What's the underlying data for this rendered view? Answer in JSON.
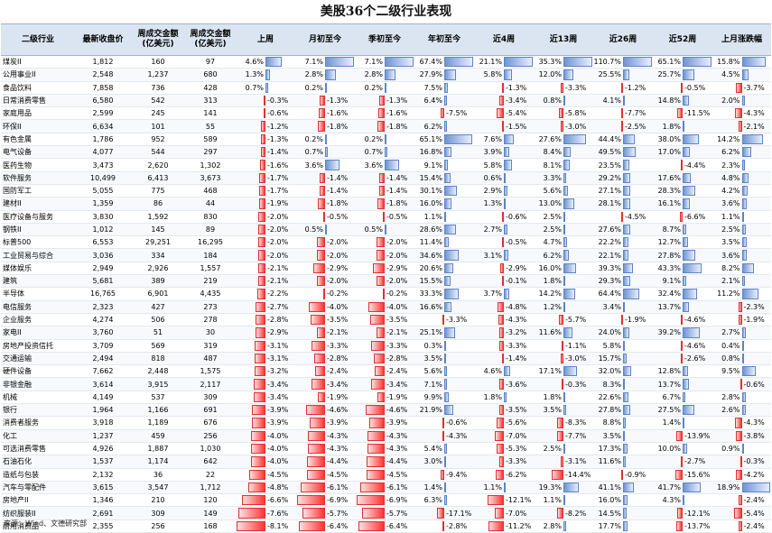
{
  "title": "美股36个二级行业表现",
  "source": "来源：Wind、文德研究部",
  "headers": [
    "二级行业",
    "最新收盘价",
    "周成交金额\n(亿美元)",
    "周成交金额\n(亿美元)",
    "上周",
    "月初至今",
    "季初至今",
    "年初至今",
    "近4周",
    "近13周",
    "近26周",
    "近52周",
    "上月涨跌幅"
  ],
  "colors": {
    "header_bg": "#dbe5f1",
    "positive_bar": "#6f95d2",
    "negative_bar": "#ff3333"
  },
  "rows": [
    {
      "name": "煤炭II",
      "price": "1,812",
      "amt1": "160",
      "amt2": "97",
      "p": [
        "4.6%",
        "7.1%",
        "7.1%",
        "67.4%",
        "21.1%",
        "35.3%",
        "110.7%",
        "65.1%",
        "15.8%"
      ]
    },
    {
      "name": "公用事业II",
      "price": "2,548",
      "amt1": "1,237",
      "amt2": "680",
      "p": [
        "1.3%",
        "2.8%",
        "2.8%",
        "27.9%",
        "5.8%",
        "12.0%",
        "25.5%",
        "25.7%",
        "4.5%"
      ]
    },
    {
      "name": "食品饮料",
      "price": "7,858",
      "amt1": "736",
      "amt2": "428",
      "p": [
        "0.7%",
        "0.2%",
        "0.2%",
        "7.5%",
        "-1.3%",
        "-3.3%",
        "-1.2%",
        "-0.5%",
        "-3.7%"
      ]
    },
    {
      "name": "日常消费零售",
      "price": "6,580",
      "amt1": "542",
      "amt2": "313",
      "p": [
        "-0.3%",
        "-1.3%",
        "-1.3%",
        "6.4%",
        "-3.4%",
        "0.8%",
        "4.1%",
        "14.8%",
        "2.0%"
      ]
    },
    {
      "name": "家庭用品",
      "price": "2,599",
      "amt1": "245",
      "amt2": "141",
      "p": [
        "-0.6%",
        "-1.6%",
        "-1.6%",
        "-7.5%",
        "-5.4%",
        "-5.8%",
        "-7.7%",
        "-11.5%",
        "-4.3%"
      ]
    },
    {
      "name": "环保II",
      "price": "6,634",
      "amt1": "101",
      "amt2": "55",
      "p": [
        "-1.2%",
        "-1.8%",
        "-1.8%",
        "6.2%",
        "-1.5%",
        "-3.0%",
        "-2.5%",
        "1.8%",
        "-2.1%"
      ]
    },
    {
      "name": "有色金属",
      "price": "1,786",
      "amt1": "952",
      "amt2": "589",
      "p": [
        "-1.3%",
        "0.2%",
        "0.2%",
        "65.1%",
        "7.6%",
        "27.6%",
        "44.4%",
        "38.0%",
        "14.2%"
      ]
    },
    {
      "name": "电气设备",
      "price": "4,077",
      "amt1": "544",
      "amt2": "297",
      "p": [
        "-1.4%",
        "0.7%",
        "0.7%",
        "16.8%",
        "3.9%",
        "8.4%",
        "49.5%",
        "17.0%",
        "6.2%"
      ]
    },
    {
      "name": "医药生物",
      "price": "3,473",
      "amt1": "2,620",
      "amt2": "1,302",
      "p": [
        "-1.6%",
        "3.6%",
        "3.6%",
        "9.1%",
        "5.8%",
        "8.1%",
        "23.5%",
        "-4.4%",
        "2.3%"
      ]
    },
    {
      "name": "软件服务",
      "price": "10,499",
      "amt1": "6,413",
      "amt2": "3,673",
      "p": [
        "-1.7%",
        "-1.4%",
        "-1.4%",
        "15.4%",
        "0.6%",
        "3.3%",
        "29.2%",
        "17.6%",
        "4.8%"
      ]
    },
    {
      "name": "国防军工",
      "price": "5,055",
      "amt1": "775",
      "amt2": "468",
      "p": [
        "-1.7%",
        "-1.4%",
        "-1.4%",
        "30.1%",
        "2.9%",
        "5.6%",
        "27.1%",
        "28.3%",
        "4.2%"
      ]
    },
    {
      "name": "建材II",
      "price": "1,359",
      "amt1": "86",
      "amt2": "44",
      "p": [
        "-1.9%",
        "-1.8%",
        "-1.8%",
        "16.0%",
        "1.3%",
        "13.0%",
        "28.1%",
        "16.1%",
        "3.6%"
      ]
    },
    {
      "name": "医疗设备与服务",
      "price": "3,830",
      "amt1": "1,592",
      "amt2": "830",
      "p": [
        "-2.0%",
        "-0.5%",
        "-0.5%",
        "1.1%",
        "-0.6%",
        "2.5%",
        "-4.5%",
        "-6.6%",
        "1.1%"
      ]
    },
    {
      "name": "钢铁II",
      "price": "1,012",
      "amt1": "145",
      "amt2": "89",
      "p": [
        "-2.0%",
        "0.5%",
        "0.5%",
        "28.6%",
        "2.7%",
        "2.5%",
        "27.6%",
        "8.7%",
        "2.5%"
      ]
    },
    {
      "name": "标普500",
      "price": "6,553",
      "amt1": "29,251",
      "amt2": "16,295",
      "p": [
        "-2.0%",
        "-2.0%",
        "-2.0%",
        "11.4%",
        "-0.5%",
        "4.7%",
        "22.2%",
        "12.7%",
        "3.5%"
      ]
    },
    {
      "name": "工业贸易与综合",
      "price": "3,036",
      "amt1": "334",
      "amt2": "184",
      "p": [
        "-2.0%",
        "-2.0%",
        "-2.0%",
        "34.6%",
        "3.1%",
        "6.2%",
        "22.1%",
        "27.8%",
        "3.6%"
      ]
    },
    {
      "name": "媒体娱乐",
      "price": "2,949",
      "amt1": "2,926",
      "amt2": "1,557",
      "p": [
        "-2.1%",
        "-2.9%",
        "-2.9%",
        "20.6%",
        "-2.9%",
        "16.0%",
        "39.3%",
        "43.3%",
        "8.2%"
      ]
    },
    {
      "name": "建筑",
      "price": "5,681",
      "amt1": "389",
      "amt2": "219",
      "p": [
        "-2.1%",
        "-2.0%",
        "-2.0%",
        "15.5%",
        "-0.1%",
        "1.8%",
        "29.3%",
        "9.1%",
        "2.1%"
      ]
    },
    {
      "name": "半导体",
      "price": "16,765",
      "amt1": "6,901",
      "amt2": "4,435",
      "p": [
        "-2.2%",
        "-0.2%",
        "-0.2%",
        "33.3%",
        "3.7%",
        "14.2%",
        "64.4%",
        "32.4%",
        "11.2%"
      ]
    },
    {
      "name": "电信服务",
      "price": "2,323",
      "amt1": "427",
      "amt2": "273",
      "p": [
        "-2.7%",
        "-4.0%",
        "-4.0%",
        "16.6%",
        "-4.8%",
        "1.2%",
        "3.4%",
        "13.7%",
        "-2.3%"
      ]
    },
    {
      "name": "企业服务",
      "price": "4,274",
      "amt1": "506",
      "amt2": "278",
      "p": [
        "-2.8%",
        "-3.5%",
        "-3.5%",
        "-3.3%",
        "-4.3%",
        "-5.7%",
        "-1.9%",
        "-4.6%",
        "-1.9%"
      ]
    },
    {
      "name": "家电II",
      "price": "3,760",
      "amt1": "51",
      "amt2": "30",
      "p": [
        "-2.9%",
        "-2.1%",
        "-2.1%",
        "25.1%",
        "-3.2%",
        "11.6%",
        "24.0%",
        "39.2%",
        "2.7%"
      ]
    },
    {
      "name": "房地产投资信托",
      "price": "3,709",
      "amt1": "569",
      "amt2": "319",
      "p": [
        "-3.1%",
        "-3.3%",
        "-3.3%",
        "0.3%",
        "-3.3%",
        "-1.1%",
        "5.8%",
        "-4.6%",
        "0.4%"
      ]
    },
    {
      "name": "交通运输",
      "price": "2,494",
      "amt1": "818",
      "amt2": "487",
      "p": [
        "-3.1%",
        "-2.8%",
        "-2.8%",
        "3.5%",
        "-1.4%",
        "-3.0%",
        "15.7%",
        "-2.6%",
        "0.8%"
      ]
    },
    {
      "name": "硬件设备",
      "price": "7,662",
      "amt1": "2,448",
      "amt2": "1,575",
      "p": [
        "-3.2%",
        "-2.4%",
        "-2.4%",
        "5.6%",
        "4.6%",
        "17.1%",
        "32.0%",
        "12.8%",
        "9.5%"
      ]
    },
    {
      "name": "非银金融",
      "price": "3,614",
      "amt1": "3,915",
      "amt2": "2,117",
      "p": [
        "-3.4%",
        "-3.4%",
        "-3.4%",
        "7.1%",
        "-3.6%",
        "-0.3%",
        "8.3%",
        "13.7%",
        "-0.6%"
      ]
    },
    {
      "name": "机械",
      "price": "4,149",
      "amt1": "537",
      "amt2": "309",
      "p": [
        "-3.4%",
        "-1.9%",
        "-1.9%",
        "9.9%",
        "1.8%",
        "1.8%",
        "22.6%",
        "6.7%",
        "2.8%"
      ]
    },
    {
      "name": "银行",
      "price": "1,964",
      "amt1": "1,166",
      "amt2": "691",
      "p": [
        "-3.9%",
        "-4.6%",
        "-4.6%",
        "21.9%",
        "-3.5%",
        "3.5%",
        "27.8%",
        "27.5%",
        "2.6%"
      ]
    },
    {
      "name": "消费者服务",
      "price": "3,918",
      "amt1": "1,189",
      "amt2": "676",
      "p": [
        "-3.9%",
        "-3.9%",
        "-3.9%",
        "-0.6%",
        "-5.6%",
        "-8.3%",
        "8.8%",
        "1.4%",
        "-4.3%"
      ]
    },
    {
      "name": "化工",
      "price": "1,237",
      "amt1": "459",
      "amt2": "256",
      "p": [
        "-4.0%",
        "-4.3%",
        "-4.3%",
        "-4.3%",
        "-7.0%",
        "-7.7%",
        "3.5%",
        "-13.9%",
        "-3.8%"
      ]
    },
    {
      "name": "可选消费零售",
      "price": "4,926",
      "amt1": "1,887",
      "amt2": "1,030",
      "p": [
        "-4.0%",
        "-4.3%",
        "-4.3%",
        "5.4%",
        "-5.3%",
        "2.5%",
        "17.3%",
        "10.0%",
        "0.9%"
      ]
    },
    {
      "name": "石油石化",
      "price": "1,537",
      "amt1": "1,174",
      "amt2": "642",
      "p": [
        "-4.0%",
        "-4.4%",
        "-4.4%",
        "3.0%",
        "-3.3%",
        "-3.1%",
        "11.6%",
        "-2.7%",
        "-0.3%"
      ]
    },
    {
      "name": "造纸与包装",
      "price": "2,132",
      "amt1": "36",
      "amt2": "22",
      "p": [
        "-4.5%",
        "-4.5%",
        "-4.5%",
        "-9.4%",
        "-6.2%",
        "-14.4%",
        "-0.9%",
        "-15.6%",
        "-4.2%"
      ]
    },
    {
      "name": "汽车与零配件",
      "price": "3,615",
      "amt1": "3,547",
      "amt2": "1,712",
      "p": [
        "-4.8%",
        "-6.1%",
        "-6.1%",
        "1.4%",
        "1.1%",
        "19.3%",
        "41.1%",
        "41.7%",
        "18.9%"
      ]
    },
    {
      "name": "房地产II",
      "price": "1,346",
      "amt1": "210",
      "amt2": "120",
      "p": [
        "-6.6%",
        "-6.9%",
        "-6.9%",
        "6.3%",
        "-12.1%",
        "1.1%",
        "16.0%",
        "4.3%",
        "-2.4%"
      ]
    },
    {
      "name": "纺织服装II",
      "price": "2,691",
      "amt1": "309",
      "amt2": "149",
      "p": [
        "-7.6%",
        "-5.7%",
        "-5.7%",
        "-17.1%",
        "-7.0%",
        "-8.2%",
        "14.5%",
        "-12.1%",
        "-5.4%"
      ]
    },
    {
      "name": "耐用消费品",
      "price": "2,355",
      "amt1": "256",
      "amt2": "168",
      "p": [
        "-8.1%",
        "-6.4%",
        "-6.4%",
        "-2.8%",
        "-11.2%",
        "2.8%",
        "17.7%",
        "-13.7%",
        "-2.4%"
      ]
    }
  ]
}
